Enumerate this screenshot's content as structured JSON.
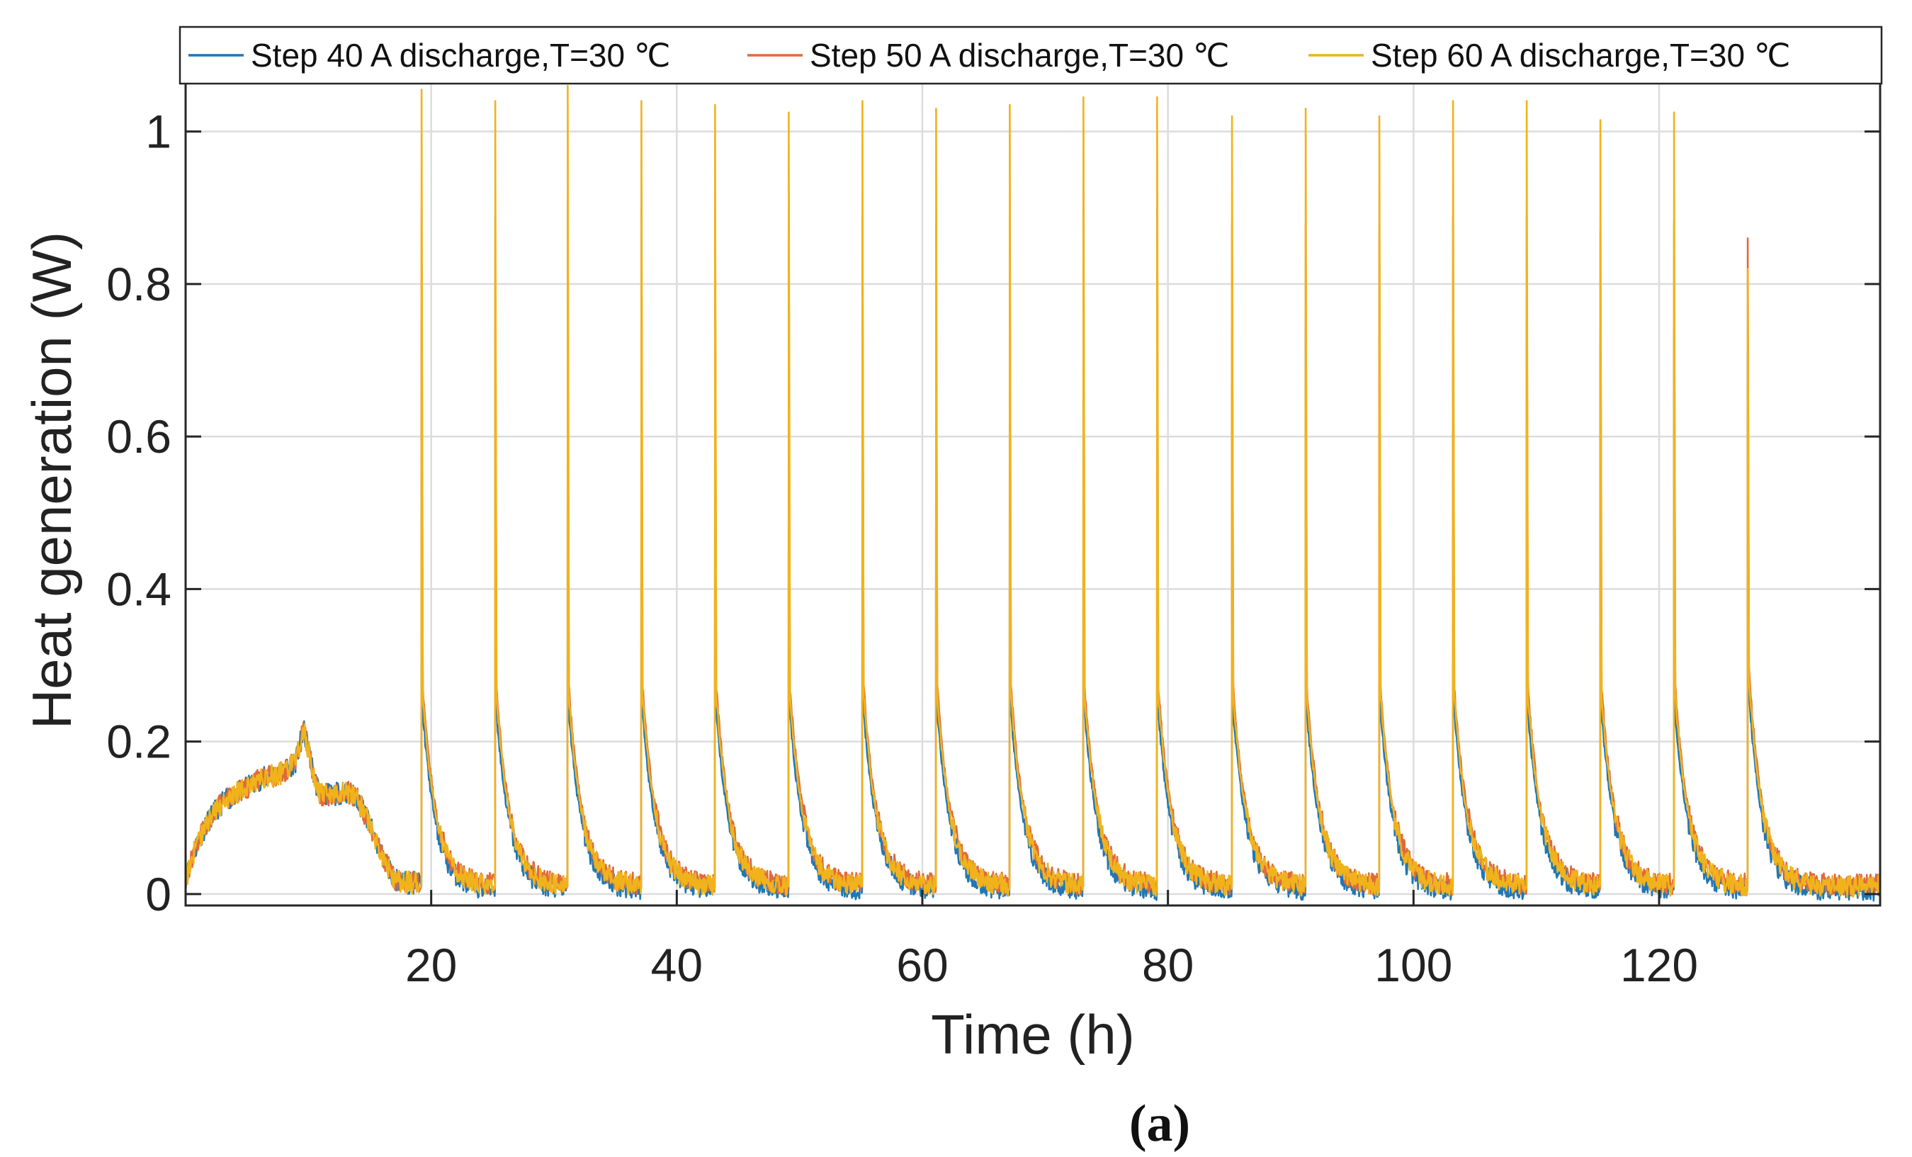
{
  "chart_data": {
    "type": "line",
    "xlabel": "Time (h)",
    "ylabel": "Heat generation (W)",
    "xlim": [
      0,
      138
    ],
    "ylim": [
      -0.015,
      1.1
    ],
    "xticks": [
      20,
      40,
      60,
      80,
      100,
      120
    ],
    "yticks": [
      0,
      0.2,
      0.4,
      0.6,
      0.8,
      1
    ],
    "ytick_labels": [
      "0",
      "0.2",
      "0.4",
      "0.6",
      "0.8",
      "1"
    ],
    "grid": true,
    "legend_position": "top",
    "caption": "(a)",
    "pulse_times_h": [
      19.2,
      25.2,
      31.1,
      37.1,
      43.1,
      49.1,
      55.1,
      61.1,
      67.1,
      73.1,
      79.1,
      85.2,
      91.2,
      97.2,
      103.2,
      109.2,
      115.2,
      121.2,
      127.2
    ],
    "rest_profile": {
      "x": [
        0,
        1,
        2,
        3,
        4,
        5,
        6,
        7,
        8,
        9,
        9.6,
        10,
        10.5,
        11,
        12,
        13,
        14,
        15,
        16,
        17,
        18,
        19
      ],
      "y": [
        0.02,
        0.07,
        0.1,
        0.12,
        0.13,
        0.14,
        0.15,
        0.155,
        0.16,
        0.175,
        0.215,
        0.19,
        0.15,
        0.13,
        0.13,
        0.135,
        0.125,
        0.09,
        0.05,
        0.02,
        0.015,
        0.015
      ]
    },
    "series": [
      {
        "name": "Step 40 A discharge,T=30 ℃",
        "color": "#1f77b4",
        "peaks": [
          0.75,
          0.74,
          0.77,
          0.75,
          0.74,
          0.73,
          0.75,
          0.74,
          0.75,
          0.76,
          0.76,
          0.73,
          0.74,
          0.73,
          0.75,
          0.75,
          0.73,
          0.74,
          0.71
        ],
        "tail_start": 0.26,
        "tail_final": 0.005
      },
      {
        "name": "Step 50 A discharge,T=30 ℃",
        "color": "#e06a3b",
        "peaks": [
          0.9,
          0.89,
          0.91,
          0.9,
          0.89,
          0.88,
          0.89,
          0.88,
          0.89,
          0.9,
          0.9,
          0.88,
          0.88,
          0.87,
          0.89,
          0.89,
          0.87,
          0.88,
          0.86
        ],
        "tail_start": 0.29,
        "tail_final": 0.012
      },
      {
        "name": "Step 60 A discharge,T=30 ℃",
        "color": "#f0b31c",
        "peaks": [
          1.055,
          1.04,
          1.06,
          1.04,
          1.035,
          1.025,
          1.04,
          1.03,
          1.035,
          1.045,
          1.045,
          1.02,
          1.03,
          1.02,
          1.04,
          1.04,
          1.015,
          1.025,
          0.82
        ],
        "tail_start": 0.28,
        "tail_final": 0.01
      }
    ]
  }
}
